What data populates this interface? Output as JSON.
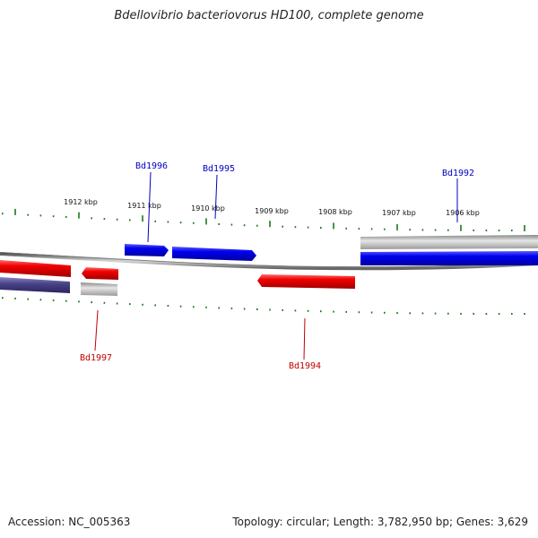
{
  "title": "Bdellovibrio bacteriovorus HD100, complete genome",
  "accession_label": "Accession: NC_005363",
  "summary_label": "Topology: circular; Length: 3,782,950 bp; Genes: 3,629",
  "tick_labels": [
    "1912 kbp",
    "1911 kbp",
    "1910 kbp",
    "1909 kbp",
    "1908 kbp",
    "1907 kbp",
    "1906 kbp"
  ],
  "genes": {
    "forward": [
      "Bd1996",
      "Bd1995",
      "Bd1992"
    ],
    "reverse": [
      "Bd1997",
      "Bd1994"
    ]
  },
  "colors": {
    "forward_strand": "#0000e0",
    "reverse_strand": "#e00000",
    "gray_feature": "#9a9a9a",
    "navy_feature": "#4a4488",
    "tick": "#1a7a1a",
    "backbone": "#808080"
  }
}
